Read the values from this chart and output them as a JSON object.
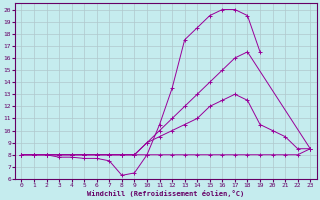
{
  "xlabel": "Windchill (Refroidissement éolien,°C)",
  "bg_color": "#c5ecee",
  "grid_color": "#b0c8cc",
  "line_color": "#990099",
  "border_color": "#660066",
  "xlim": [
    -0.5,
    23.5
  ],
  "ylim": [
    6,
    20.5
  ],
  "yticks": [
    6,
    7,
    8,
    9,
    10,
    11,
    12,
    13,
    14,
    15,
    16,
    17,
    18,
    19,
    20
  ],
  "xticks": [
    0,
    1,
    2,
    3,
    4,
    5,
    6,
    7,
    8,
    9,
    10,
    11,
    12,
    13,
    14,
    15,
    16,
    17,
    18,
    19,
    20,
    21,
    22,
    23
  ],
  "series": [
    {
      "x": [
        0,
        1,
        2,
        3,
        4,
        5,
        6,
        7,
        8,
        9,
        10,
        11,
        12,
        13,
        14,
        15,
        16,
        17,
        18,
        19,
        20,
        21,
        22,
        23
      ],
      "y": [
        8,
        8,
        8,
        8,
        8,
        8,
        8,
        8,
        8,
        8,
        8,
        8,
        8,
        8,
        8,
        8,
        8,
        8,
        8,
        8,
        8,
        8,
        8,
        8.5
      ]
    },
    {
      "x": [
        0,
        1,
        2,
        3,
        4,
        5,
        6,
        7,
        8,
        9,
        10,
        11,
        12,
        13,
        14,
        15,
        16,
        17,
        18,
        19,
        20,
        21,
        22,
        23
      ],
      "y": [
        8,
        8,
        8,
        8,
        8,
        8,
        8,
        8,
        8,
        8,
        9,
        9.5,
        10,
        10.5,
        11,
        12,
        12.5,
        13,
        12.5,
        10.5,
        10,
        9.5,
        8.5,
        8.5
      ]
    },
    {
      "x": [
        0,
        1,
        2,
        3,
        4,
        5,
        6,
        7,
        8,
        9,
        10,
        11,
        12,
        13,
        14,
        15,
        16,
        17,
        18,
        19,
        20
      ],
      "y": [
        8,
        8,
        8,
        7.8,
        7.8,
        7.7,
        7.7,
        7.5,
        6.3,
        6.5,
        8,
        10.5,
        13.5,
        17.5,
        18.5,
        19.5,
        20,
        20,
        19.5,
        16.5,
        null
      ]
    },
    {
      "x": [
        0,
        1,
        2,
        3,
        4,
        5,
        6,
        7,
        8,
        9,
        10,
        11,
        12,
        13,
        14,
        15,
        16,
        17,
        18,
        19,
        20,
        21,
        22,
        23
      ],
      "y": [
        8,
        8,
        8,
        8,
        8,
        8,
        8,
        8,
        8,
        8,
        9,
        10,
        11,
        12,
        13,
        14,
        15,
        16,
        16.5,
        null,
        null,
        null,
        null,
        8.5
      ]
    }
  ]
}
